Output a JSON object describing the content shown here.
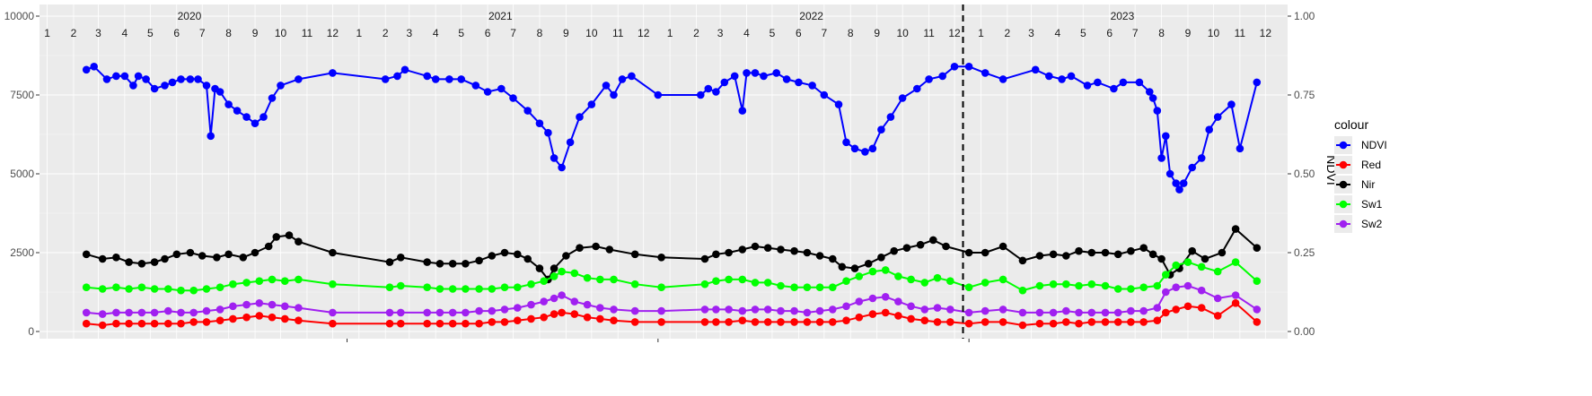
{
  "chart_data": {
    "type": "line",
    "title": "",
    "xlabel": "",
    "ylabel_left": "",
    "ylabel_right": "NDVI",
    "ylim_left": [
      0,
      10000
    ],
    "ylim_right": [
      0,
      1
    ],
    "yticks_left": [
      "0",
      "2500",
      "5000",
      "7500",
      "10000"
    ],
    "yticks_right": [
      "0.00",
      "0.25",
      "0.50",
      "0.75",
      "1.00"
    ],
    "grid": true,
    "years": [
      "2020",
      "2021",
      "2022",
      "2023"
    ],
    "months": [
      "1",
      "2",
      "3",
      "4",
      "5",
      "6",
      "7",
      "8",
      "9",
      "10",
      "11",
      "12"
    ],
    "vline_date": "2022-12-25",
    "legend": {
      "title": "colour",
      "placement": "right",
      "entries": [
        {
          "name": "NDVI",
          "color": "#0000ff"
        },
        {
          "name": "Red",
          "color": "#ff0000"
        },
        {
          "name": "Nir",
          "color": "#000000"
        },
        {
          "name": "Sw1",
          "color": "#00ff00"
        },
        {
          "name": "Sw2",
          "color": "#a020f0"
        }
      ]
    },
    "series": [
      {
        "name": "NDVI",
        "color": "#0000ff",
        "axis": "right",
        "x": [
          "2020-03-01",
          "2020-03-10",
          "2020-03-25",
          "2020-04-05",
          "2020-04-15",
          "2020-04-25",
          "2020-05-01",
          "2020-05-10",
          "2020-05-20",
          "2020-06-01",
          "2020-06-10",
          "2020-06-20",
          "2020-07-01",
          "2020-07-10",
          "2020-07-20",
          "2020-07-25",
          "2020-07-30",
          "2020-08-05",
          "2020-08-15",
          "2020-08-25",
          "2020-09-05",
          "2020-09-15",
          "2020-09-25",
          "2020-10-05",
          "2020-10-15",
          "2020-11-05",
          "2020-12-15",
          "2021-02-15",
          "2021-03-01",
          "2021-03-10",
          "2021-04-05",
          "2021-04-15",
          "2021-05-01",
          "2021-05-15",
          "2021-06-01",
          "2021-06-15",
          "2021-07-01",
          "2021-07-15",
          "2021-08-01",
          "2021-08-15",
          "2021-08-25",
          "2021-09-01",
          "2021-09-10",
          "2021-09-20",
          "2021-10-01",
          "2021-10-15",
          "2021-11-01",
          "2021-11-10",
          "2021-11-20",
          "2021-12-01",
          "2022-01-01",
          "2022-02-20",
          "2022-03-01",
          "2022-03-10",
          "2022-03-20",
          "2022-04-01",
          "2022-04-10",
          "2022-04-15",
          "2022-04-25",
          "2022-05-05",
          "2022-05-20",
          "2022-06-01",
          "2022-06-15",
          "2022-07-01",
          "2022-07-15",
          "2022-08-01",
          "2022-08-10",
          "2022-08-20",
          "2022-09-01",
          "2022-09-10",
          "2022-09-20",
          "2022-10-01",
          "2022-10-15",
          "2022-11-01",
          "2022-11-15",
          "2022-12-01",
          "2022-12-15",
          "2023-01-01",
          "2023-01-20",
          "2023-02-10",
          "2023-03-20",
          "2023-04-05",
          "2023-04-20",
          "2023-05-01",
          "2023-05-20",
          "2023-06-01",
          "2023-06-20",
          "2023-07-01",
          "2023-07-20",
          "2023-08-01",
          "2023-08-05",
          "2023-08-10",
          "2023-08-15",
          "2023-08-20",
          "2023-08-25",
          "2023-09-01",
          "2023-09-05",
          "2023-09-10",
          "2023-09-20",
          "2023-10-01",
          "2023-10-10",
          "2023-10-20",
          "2023-11-05",
          "2023-11-15",
          "2023-12-05"
        ],
        "values": [
          0.83,
          0.84,
          0.8,
          0.81,
          0.81,
          0.78,
          0.81,
          0.8,
          0.77,
          0.78,
          0.79,
          0.8,
          0.8,
          0.8,
          0.78,
          0.62,
          0.77,
          0.76,
          0.72,
          0.7,
          0.68,
          0.66,
          0.68,
          0.74,
          0.78,
          0.8,
          0.82,
          0.8,
          0.81,
          0.83,
          0.81,
          0.8,
          0.8,
          0.8,
          0.78,
          0.76,
          0.77,
          0.74,
          0.7,
          0.66,
          0.63,
          0.55,
          0.52,
          0.6,
          0.68,
          0.72,
          0.78,
          0.75,
          0.8,
          0.81,
          0.75,
          0.75,
          0.77,
          0.76,
          0.79,
          0.81,
          0.7,
          0.82,
          0.82,
          0.81,
          0.82,
          0.8,
          0.79,
          0.78,
          0.75,
          0.72,
          0.6,
          0.58,
          0.57,
          0.58,
          0.64,
          0.68,
          0.74,
          0.77,
          0.8,
          0.81,
          0.84,
          0.84,
          0.82,
          0.8,
          0.83,
          0.81,
          0.8,
          0.81,
          0.78,
          0.79,
          0.77,
          0.79,
          0.79,
          0.76,
          0.74,
          0.7,
          0.55,
          0.62,
          0.5,
          0.47,
          0.45,
          0.47,
          0.52,
          0.55,
          0.64,
          0.68,
          0.72,
          0.58,
          0.79
        ]
      },
      {
        "name": "Nir",
        "color": "#000000",
        "axis": "left",
        "x": [
          "2020-03-01",
          "2020-03-20",
          "2020-04-05",
          "2020-04-20",
          "2020-05-05",
          "2020-05-20",
          "2020-06-01",
          "2020-06-15",
          "2020-07-01",
          "2020-07-15",
          "2020-08-01",
          "2020-08-15",
          "2020-09-01",
          "2020-09-15",
          "2020-10-01",
          "2020-10-10",
          "2020-10-25",
          "2020-11-05",
          "2020-12-15",
          "2021-02-20",
          "2021-03-05",
          "2021-04-05",
          "2021-04-20",
          "2021-05-05",
          "2021-05-20",
          "2021-06-05",
          "2021-06-20",
          "2021-07-05",
          "2021-07-20",
          "2021-08-01",
          "2021-08-15",
          "2021-08-25",
          "2021-09-01",
          "2021-09-15",
          "2021-10-01",
          "2021-10-20",
          "2021-11-05",
          "2021-12-05",
          "2022-01-05",
          "2022-02-25",
          "2022-03-10",
          "2022-03-25",
          "2022-04-10",
          "2022-04-25",
          "2022-05-10",
          "2022-05-25",
          "2022-06-10",
          "2022-06-25",
          "2022-07-10",
          "2022-07-25",
          "2022-08-05",
          "2022-08-20",
          "2022-09-05",
          "2022-09-20",
          "2022-10-05",
          "2022-10-20",
          "2022-11-05",
          "2022-11-20",
          "2022-12-05",
          "2023-01-01",
          "2023-01-20",
          "2023-02-10",
          "2023-03-05",
          "2023-03-25",
          "2023-04-10",
          "2023-04-25",
          "2023-05-10",
          "2023-05-25",
          "2023-06-10",
          "2023-06-25",
          "2023-07-10",
          "2023-07-25",
          "2023-08-05",
          "2023-08-15",
          "2023-08-25",
          "2023-09-05",
          "2023-09-20",
          "2023-10-05",
          "2023-10-25",
          "2023-11-10",
          "2023-12-05"
        ],
        "values": [
          2450,
          2300,
          2350,
          2200,
          2150,
          2200,
          2300,
          2450,
          2500,
          2400,
          2350,
          2450,
          2350,
          2500,
          2700,
          3000,
          3050,
          2850,
          2500,
          2200,
          2350,
          2200,
          2150,
          2150,
          2150,
          2250,
          2400,
          2500,
          2450,
          2300,
          2000,
          1650,
          2000,
          2400,
          2650,
          2700,
          2600,
          2450,
          2350,
          2300,
          2450,
          2500,
          2600,
          2700,
          2650,
          2600,
          2550,
          2500,
          2400,
          2300,
          2050,
          2000,
          2150,
          2350,
          2550,
          2650,
          2750,
          2900,
          2700,
          2500,
          2500,
          2700,
          2250,
          2400,
          2450,
          2400,
          2550,
          2500,
          2500,
          2450,
          2550,
          2650,
          2450,
          2300,
          1800,
          2000,
          2550,
          2300,
          2500,
          3250,
          2650
        ]
      },
      {
        "name": "Sw1",
        "color": "#00ff00",
        "axis": "left",
        "x": [
          "2020-03-01",
          "2020-03-20",
          "2020-04-05",
          "2020-04-20",
          "2020-05-05",
          "2020-05-20",
          "2020-06-05",
          "2020-06-20",
          "2020-07-05",
          "2020-07-20",
          "2020-08-05",
          "2020-08-20",
          "2020-09-05",
          "2020-09-20",
          "2020-10-05",
          "2020-10-20",
          "2020-11-05",
          "2020-12-15",
          "2021-02-20",
          "2021-03-05",
          "2021-04-05",
          "2021-04-20",
          "2021-05-05",
          "2021-05-20",
          "2021-06-05",
          "2021-06-20",
          "2021-07-05",
          "2021-07-20",
          "2021-08-05",
          "2021-08-20",
          "2021-09-01",
          "2021-09-10",
          "2021-09-25",
          "2021-10-10",
          "2021-10-25",
          "2021-11-10",
          "2021-12-05",
          "2022-01-05",
          "2022-02-25",
          "2022-03-10",
          "2022-03-25",
          "2022-04-10",
          "2022-04-25",
          "2022-05-10",
          "2022-05-25",
          "2022-06-10",
          "2022-06-25",
          "2022-07-10",
          "2022-07-25",
          "2022-08-10",
          "2022-08-25",
          "2022-09-10",
          "2022-09-25",
          "2022-10-10",
          "2022-10-25",
          "2022-11-10",
          "2022-11-25",
          "2022-12-10",
          "2023-01-01",
          "2023-01-20",
          "2023-02-10",
          "2023-03-05",
          "2023-03-25",
          "2023-04-10",
          "2023-04-25",
          "2023-05-10",
          "2023-05-25",
          "2023-06-10",
          "2023-06-25",
          "2023-07-10",
          "2023-07-25",
          "2023-08-10",
          "2023-08-20",
          "2023-09-01",
          "2023-09-15",
          "2023-10-01",
          "2023-10-20",
          "2023-11-10",
          "2023-12-05"
        ],
        "values": [
          1400,
          1350,
          1400,
          1350,
          1400,
          1350,
          1350,
          1300,
          1300,
          1350,
          1400,
          1500,
          1550,
          1600,
          1650,
          1600,
          1650,
          1500,
          1400,
          1450,
          1400,
          1350,
          1350,
          1350,
          1350,
          1350,
          1400,
          1400,
          1500,
          1600,
          1750,
          1900,
          1850,
          1700,
          1650,
          1650,
          1500,
          1400,
          1500,
          1600,
          1650,
          1650,
          1550,
          1550,
          1450,
          1400,
          1400,
          1400,
          1400,
          1600,
          1750,
          1900,
          1950,
          1750,
          1650,
          1550,
          1700,
          1600,
          1400,
          1550,
          1650,
          1300,
          1450,
          1500,
          1500,
          1450,
          1500,
          1450,
          1350,
          1350,
          1400,
          1450,
          1800,
          2100,
          2200,
          2050,
          1900,
          2200,
          1600
        ]
      },
      {
        "name": "Sw2",
        "color": "#a020f0",
        "axis": "left",
        "x": [
          "2020-03-01",
          "2020-03-20",
          "2020-04-05",
          "2020-04-20",
          "2020-05-05",
          "2020-05-20",
          "2020-06-05",
          "2020-06-20",
          "2020-07-05",
          "2020-07-20",
          "2020-08-05",
          "2020-08-20",
          "2020-09-05",
          "2020-09-20",
          "2020-10-05",
          "2020-10-20",
          "2020-11-05",
          "2020-12-15",
          "2021-02-20",
          "2021-03-05",
          "2021-04-05",
          "2021-04-20",
          "2021-05-05",
          "2021-05-20",
          "2021-06-05",
          "2021-06-20",
          "2021-07-05",
          "2021-07-20",
          "2021-08-05",
          "2021-08-20",
          "2021-09-01",
          "2021-09-10",
          "2021-09-25",
          "2021-10-10",
          "2021-10-25",
          "2021-11-10",
          "2021-12-05",
          "2022-01-05",
          "2022-02-25",
          "2022-03-10",
          "2022-03-25",
          "2022-04-10",
          "2022-04-25",
          "2022-05-10",
          "2022-05-25",
          "2022-06-10",
          "2022-06-25",
          "2022-07-10",
          "2022-07-25",
          "2022-08-10",
          "2022-08-25",
          "2022-09-10",
          "2022-09-25",
          "2022-10-10",
          "2022-10-25",
          "2022-11-10",
          "2022-11-25",
          "2022-12-10",
          "2023-01-01",
          "2023-01-20",
          "2023-02-10",
          "2023-03-05",
          "2023-03-25",
          "2023-04-10",
          "2023-04-25",
          "2023-05-10",
          "2023-05-25",
          "2023-06-10",
          "2023-06-25",
          "2023-07-10",
          "2023-07-25",
          "2023-08-10",
          "2023-08-20",
          "2023-09-01",
          "2023-09-15",
          "2023-10-01",
          "2023-10-20",
          "2023-11-10",
          "2023-12-05"
        ],
        "values": [
          600,
          550,
          600,
          600,
          600,
          600,
          650,
          600,
          600,
          650,
          700,
          800,
          850,
          900,
          850,
          800,
          750,
          600,
          600,
          600,
          600,
          600,
          600,
          600,
          650,
          650,
          700,
          750,
          850,
          950,
          1050,
          1150,
          950,
          850,
          750,
          700,
          650,
          650,
          700,
          700,
          700,
          650,
          700,
          700,
          650,
          650,
          600,
          650,
          700,
          800,
          950,
          1050,
          1100,
          950,
          800,
          700,
          750,
          700,
          600,
          650,
          700,
          600,
          600,
          600,
          650,
          600,
          600,
          600,
          600,
          650,
          650,
          750,
          1250,
          1400,
          1450,
          1300,
          1050,
          1150,
          700
        ]
      },
      {
        "name": "Red",
        "color": "#ff0000",
        "axis": "left",
        "x": [
          "2020-03-01",
          "2020-03-20",
          "2020-04-05",
          "2020-04-20",
          "2020-05-05",
          "2020-05-20",
          "2020-06-05",
          "2020-06-20",
          "2020-07-05",
          "2020-07-20",
          "2020-08-05",
          "2020-08-20",
          "2020-09-05",
          "2020-09-20",
          "2020-10-05",
          "2020-10-20",
          "2020-11-05",
          "2020-12-15",
          "2021-02-20",
          "2021-03-05",
          "2021-04-05",
          "2021-04-20",
          "2021-05-05",
          "2021-05-20",
          "2021-06-05",
          "2021-06-20",
          "2021-07-05",
          "2021-07-20",
          "2021-08-05",
          "2021-08-20",
          "2021-09-01",
          "2021-09-10",
          "2021-09-25",
          "2021-10-10",
          "2021-10-25",
          "2021-11-10",
          "2021-12-05",
          "2022-01-05",
          "2022-02-25",
          "2022-03-10",
          "2022-03-25",
          "2022-04-10",
          "2022-04-25",
          "2022-05-10",
          "2022-05-25",
          "2022-06-10",
          "2022-06-25",
          "2022-07-10",
          "2022-07-25",
          "2022-08-10",
          "2022-08-25",
          "2022-09-10",
          "2022-09-25",
          "2022-10-10",
          "2022-10-25",
          "2022-11-10",
          "2022-11-25",
          "2022-12-10",
          "2023-01-01",
          "2023-01-20",
          "2023-02-10",
          "2023-03-05",
          "2023-03-25",
          "2023-04-10",
          "2023-04-25",
          "2023-05-10",
          "2023-05-25",
          "2023-06-10",
          "2023-06-25",
          "2023-07-10",
          "2023-07-25",
          "2023-08-10",
          "2023-08-20",
          "2023-09-01",
          "2023-09-15",
          "2023-10-01",
          "2023-10-20",
          "2023-11-10",
          "2023-12-05"
        ],
        "values": [
          250,
          200,
          250,
          250,
          250,
          250,
          250,
          250,
          300,
          300,
          350,
          400,
          450,
          500,
          450,
          400,
          350,
          250,
          250,
          250,
          250,
          250,
          250,
          250,
          250,
          300,
          300,
          350,
          400,
          450,
          550,
          600,
          550,
          450,
          400,
          350,
          300,
          300,
          300,
          300,
          300,
          350,
          300,
          300,
          300,
          300,
          300,
          300,
          300,
          350,
          450,
          550,
          600,
          500,
          400,
          350,
          300,
          300,
          250,
          300,
          300,
          200,
          250,
          250,
          300,
          250,
          300,
          300,
          300,
          300,
          300,
          350,
          600,
          700,
          800,
          750,
          500,
          900,
          300
        ]
      }
    ]
  }
}
